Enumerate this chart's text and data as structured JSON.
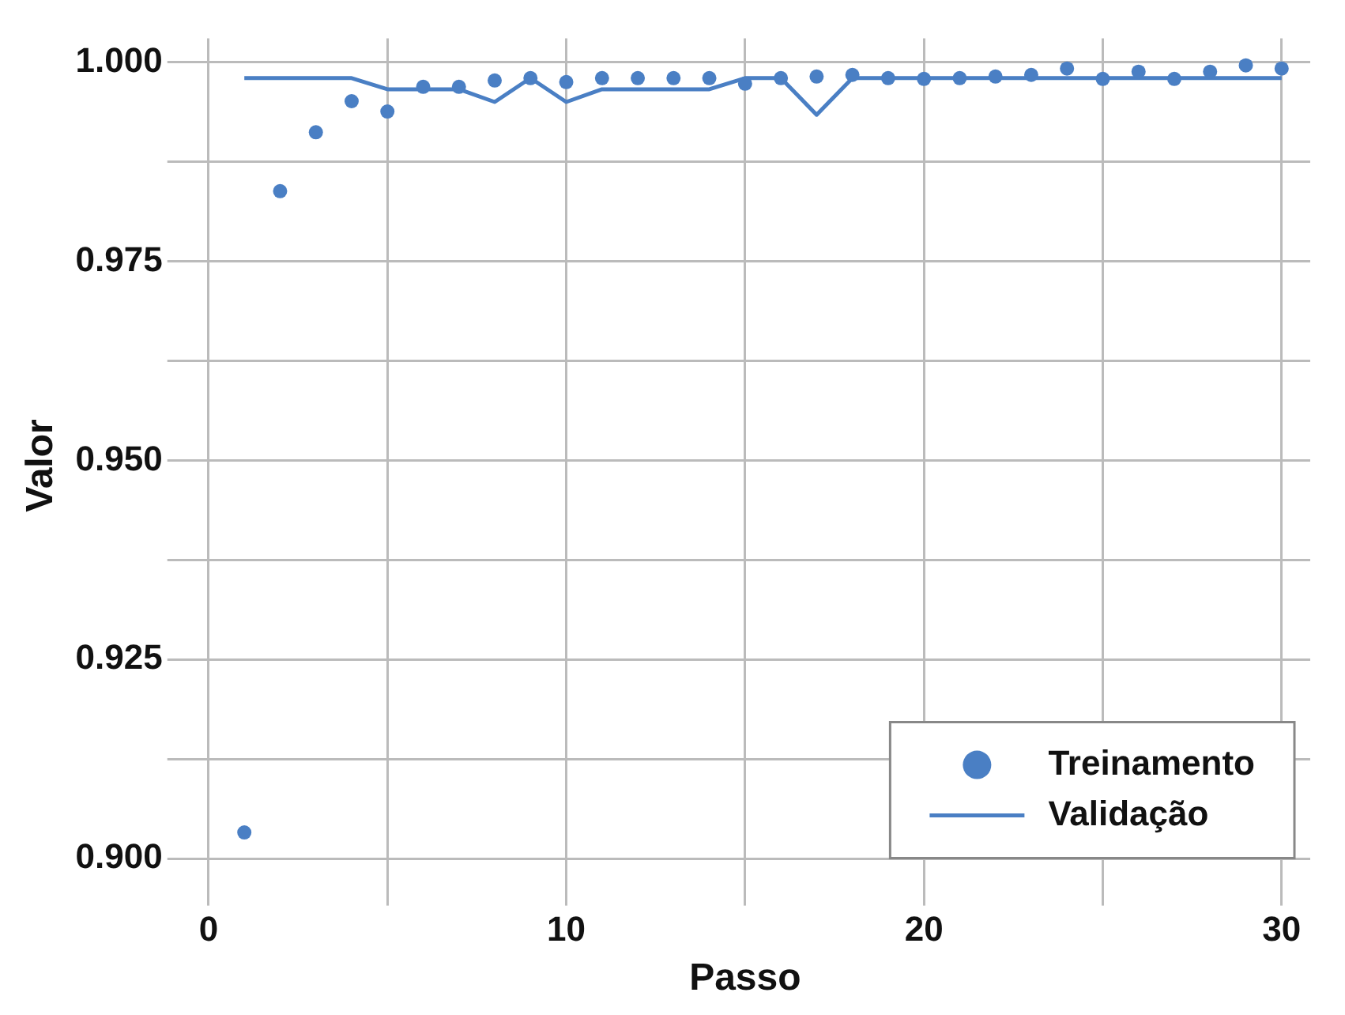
{
  "chart_data": {
    "type": "scatter",
    "xlabel": "Passo",
    "ylabel": "Valor",
    "x": [
      1,
      2,
      3,
      4,
      5,
      6,
      7,
      8,
      9,
      10,
      11,
      12,
      13,
      14,
      15,
      16,
      17,
      18,
      19,
      20,
      21,
      22,
      23,
      24,
      25,
      26,
      27,
      28,
      29,
      30
    ],
    "series": [
      {
        "name": "Treinamento",
        "marker": "circle",
        "color": "#4a7fc4",
        "values": [
          0.9033,
          0.9838,
          0.9912,
          0.9951,
          0.9938,
          0.9969,
          0.9969,
          0.9977,
          0.998,
          0.9975,
          0.998,
          0.998,
          0.998,
          0.998,
          0.9973,
          0.998,
          0.9982,
          0.9984,
          0.998,
          0.9979,
          0.998,
          0.9982,
          0.9984,
          0.9992,
          0.9979,
          0.9988,
          0.9979,
          0.9988,
          0.9996,
          0.9992
        ]
      },
      {
        "name": "Validação",
        "type": "line",
        "marker": "none",
        "line_style": "solid",
        "color": "#4a7fc4",
        "values": [
          0.998,
          0.998,
          0.998,
          0.998,
          0.9966,
          0.9966,
          0.9966,
          0.995,
          0.998,
          0.995,
          0.9966,
          0.9966,
          0.9966,
          0.9966,
          0.998,
          0.998,
          0.9934,
          0.998,
          0.998,
          0.998,
          0.998,
          0.998,
          0.998,
          0.998,
          0.998,
          0.998,
          0.998,
          0.998,
          0.998,
          0.998
        ]
      }
    ],
    "xlim": [
      -0.8,
      30.8
    ],
    "xticks": [
      0,
      {
        "value": 5,
        "label": null
      },
      10,
      {
        "value": 15,
        "label": null
      },
      20,
      {
        "value": 25,
        "label": null
      },
      30
    ],
    "ylim": [
      0.8957,
      1.003
    ],
    "yticks": [
      {
        "value": 0.9,
        "label": "0.900"
      },
      {
        "value": 0.9125,
        "label": null
      },
      {
        "value": 0.925,
        "label": "0.925"
      },
      {
        "value": 0.9375,
        "label": null
      },
      {
        "value": 0.95,
        "label": "0.950"
      },
      {
        "value": 0.9625,
        "label": null
      },
      {
        "value": 0.975,
        "label": "0.975"
      },
      {
        "value": 0.9875,
        "label": null
      },
      {
        "value": 1,
        "label": "1.000"
      }
    ],
    "grid": true,
    "legend": "bottom right"
  }
}
